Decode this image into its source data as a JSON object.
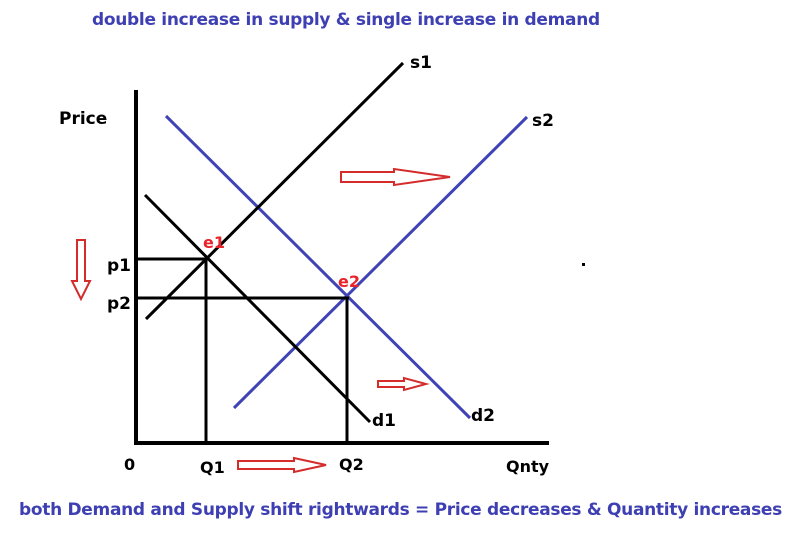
{
  "title": "double increase in supply & single increase in demand",
  "footer": "both Demand and Supply shift rightwards = Price decreases & Quantity increases",
  "axes": {
    "y_label": "Price",
    "x_label": "Qnty",
    "origin": "0"
  },
  "curves": {
    "s1": "s1",
    "s2": "s2",
    "d1": "d1",
    "d2": "d2"
  },
  "equilibria": {
    "e1": "e1",
    "e2": "e2"
  },
  "price_ticks": {
    "p1": "p1",
    "p2": "p2"
  },
  "quantity_ticks": {
    "q1": "Q1",
    "q2": "Q2"
  },
  "colors": {
    "original_curves": "#000000",
    "shifted_curves": "#3f43b6",
    "labels": "#e8232b",
    "arrows": "#d42b2b",
    "text_blue": "#3d3fb2"
  }
}
